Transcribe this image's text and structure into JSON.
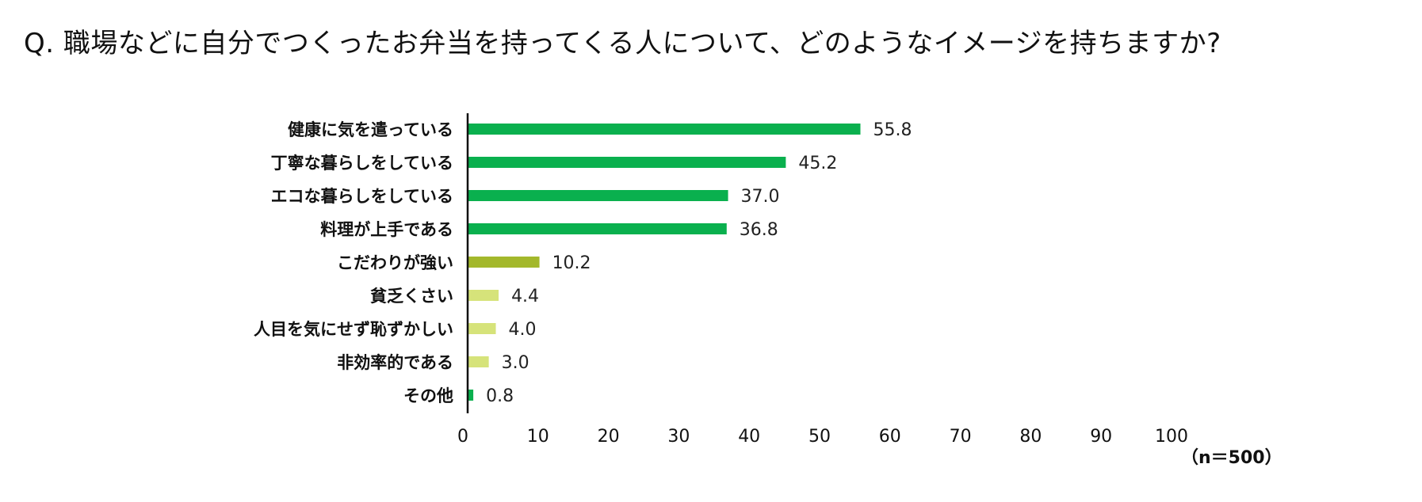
{
  "question": "Q.  職場などに自分でつくったお弁当を持ってくる人について、どのようなイメージを持ちますか?",
  "sample_note": "（n＝500）",
  "colors": {
    "positive": "#0ab04e",
    "neutral": "#a3b82b",
    "negative": "#d6e37a",
    "other": "#0ab04e",
    "axis": "#111111"
  },
  "chart_data": {
    "type": "bar",
    "orientation": "horizontal",
    "title": "",
    "xlabel": "",
    "ylabel": "",
    "xlim": [
      0,
      100
    ],
    "ticks": [
      0,
      10,
      20,
      30,
      40,
      50,
      60,
      70,
      80,
      90,
      100
    ],
    "grid": false,
    "categories": [
      "健康に気を遣っている",
      "丁寧な暮らしをしている",
      "エコな暮らしをしている",
      "料理が上手である",
      "こだわりが強い",
      "貧乏くさい",
      "人目を気にせず恥ずかしい",
      "非効率的である",
      "その他"
    ],
    "values": [
      55.8,
      45.2,
      37.0,
      36.8,
      10.2,
      4.4,
      4.0,
      3.0,
      0.8
    ],
    "value_labels": [
      "55.8",
      "45.2",
      "37.0",
      "36.8",
      "10.2",
      "4.4",
      "4.0",
      "3.0",
      "0.8"
    ],
    "bar_groups": [
      "positive",
      "positive",
      "positive",
      "positive",
      "neutral",
      "negative",
      "negative",
      "negative",
      "other"
    ]
  }
}
